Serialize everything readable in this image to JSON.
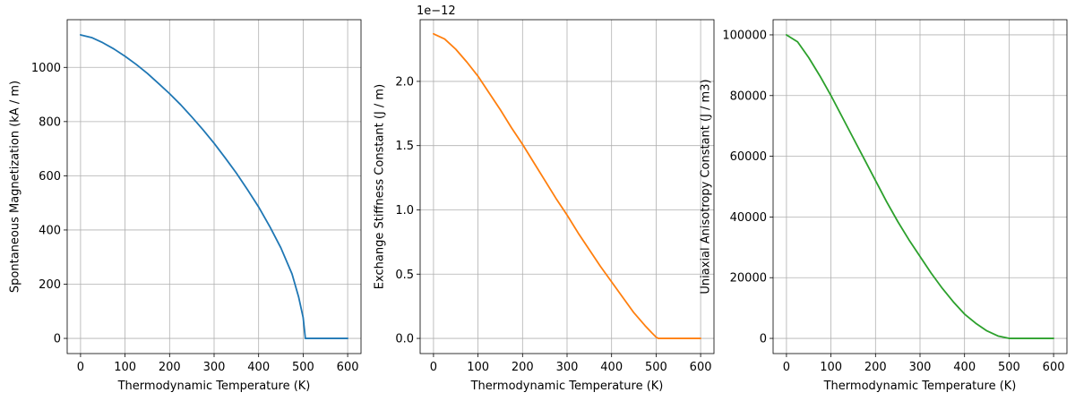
{
  "chart_data": [
    {
      "type": "line",
      "xlabel": "Thermodynamic Temperature (K)",
      "ylabel": "Spontaneous Magnetization (kA / m)",
      "offset_text": "",
      "color": "#1f77b4",
      "xlim": [
        -30,
        630
      ],
      "ylim": [
        -56,
        1176
      ],
      "xticks": [
        0,
        100,
        200,
        300,
        400,
        500,
        600
      ],
      "xtick_labels": [
        "0",
        "100",
        "200",
        "300",
        "400",
        "500",
        "600"
      ],
      "yticks": [
        0,
        200,
        400,
        600,
        800,
        1000
      ],
      "ytick_labels": [
        "0",
        "200",
        "400",
        "600",
        "800",
        "1000"
      ],
      "grid": true,
      "x": [
        0,
        25,
        50,
        75,
        100,
        125,
        150,
        175,
        200,
        225,
        250,
        275,
        300,
        325,
        350,
        375,
        400,
        425,
        450,
        475,
        490,
        500,
        505,
        510,
        525,
        550,
        575,
        600
      ],
      "y": [
        1120,
        1110,
        1091,
        1068,
        1041,
        1011,
        978,
        941,
        903,
        862,
        817,
        770,
        720,
        666,
        610,
        549,
        485,
        413,
        334,
        238,
        152,
        77,
        0,
        0,
        0,
        0,
        0,
        0
      ]
    },
    {
      "type": "line",
      "xlabel": "Thermodynamic Temperature (K)",
      "ylabel": "Exchange Stiffness Constant (J / m)",
      "offset_text": "1e−12",
      "color": "#ff7f0e",
      "xlim": [
        -30,
        630
      ],
      "ylim": [
        -0.118,
        2.48
      ],
      "xticks": [
        0,
        100,
        200,
        300,
        400,
        500,
        600
      ],
      "xtick_labels": [
        "0",
        "100",
        "200",
        "300",
        "400",
        "500",
        "600"
      ],
      "yticks": [
        0.0,
        0.5,
        1.0,
        1.5,
        2.0
      ],
      "ytick_labels": [
        "0.0",
        "0.5",
        "1.0",
        "1.5",
        "2.0"
      ],
      "grid": true,
      "x": [
        0,
        25,
        50,
        75,
        100,
        125,
        150,
        175,
        200,
        225,
        250,
        275,
        300,
        325,
        350,
        375,
        400,
        425,
        450,
        475,
        490,
        500,
        505,
        525,
        550,
        575,
        600
      ],
      "y": [
        2.37,
        2.33,
        2.25,
        2.15,
        2.04,
        1.91,
        1.78,
        1.64,
        1.51,
        1.37,
        1.23,
        1.09,
        0.96,
        0.82,
        0.69,
        0.56,
        0.44,
        0.32,
        0.2,
        0.1,
        0.045,
        0.01,
        0,
        0,
        0,
        0,
        0
      ]
    },
    {
      "type": "line",
      "xlabel": "Thermodynamic Temperature (K)",
      "ylabel": "Uniaxial Anisotropy Constant (J / m3)",
      "offset_text": "",
      "color": "#2ca02c",
      "xlim": [
        -30,
        630
      ],
      "ylim": [
        -5000,
        105000
      ],
      "xticks": [
        0,
        100,
        200,
        300,
        400,
        500,
        600
      ],
      "xtick_labels": [
        "0",
        "100",
        "200",
        "300",
        "400",
        "500",
        "600"
      ],
      "yticks": [
        0,
        20000,
        40000,
        60000,
        80000,
        100000
      ],
      "ytick_labels": [
        "0",
        "20000",
        "40000",
        "60000",
        "80000",
        "100000"
      ],
      "grid": true,
      "x": [
        0,
        25,
        50,
        75,
        100,
        125,
        150,
        175,
        200,
        225,
        250,
        275,
        300,
        325,
        350,
        375,
        400,
        425,
        450,
        475,
        500,
        525,
        550,
        575,
        600
      ],
      "y": [
        100000,
        97700,
        92500,
        86500,
        80000,
        73000,
        66000,
        59000,
        52000,
        45000,
        38500,
        32500,
        27000,
        21500,
        16500,
        12000,
        8000,
        5000,
        2500,
        800,
        0,
        0,
        0,
        0,
        0
      ]
    }
  ]
}
